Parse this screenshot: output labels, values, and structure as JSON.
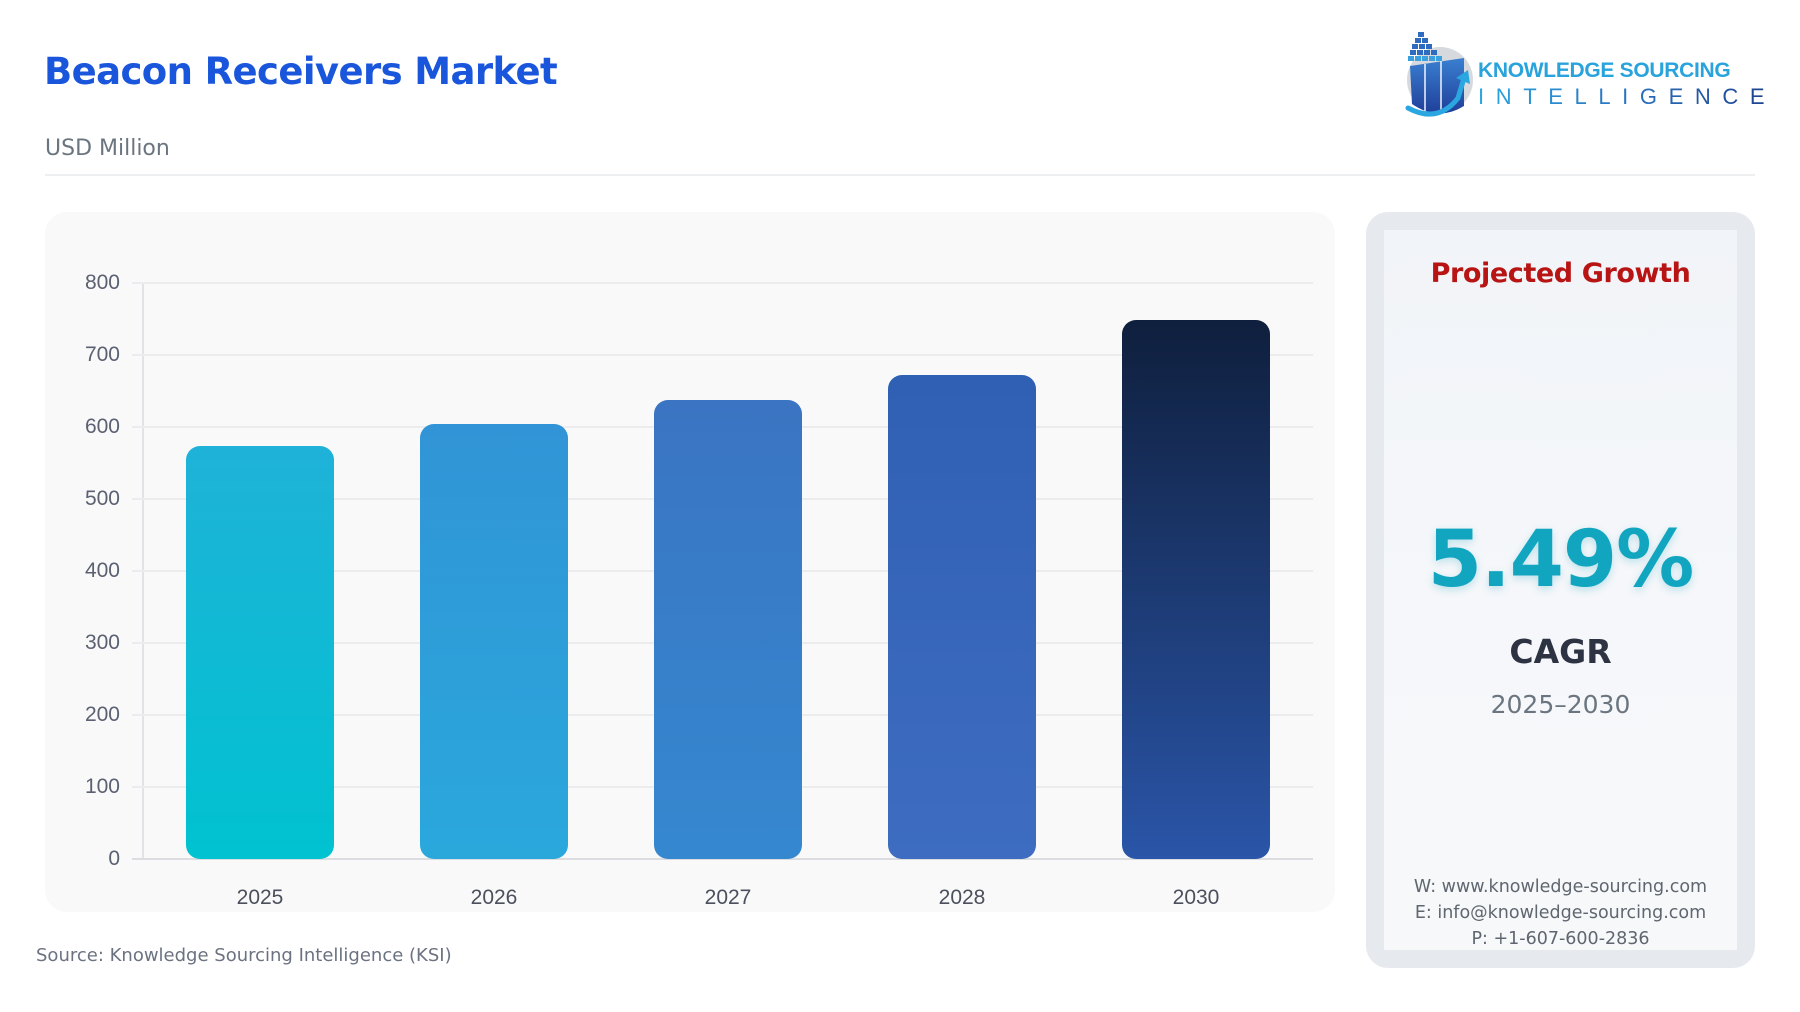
{
  "header": {
    "title": "Beacon Receivers Market",
    "subtitle": "USD Million"
  },
  "logo": {
    "line1": "KNOWLEDGE SOURCING",
    "line2": "INTELLIGENCE"
  },
  "chart_data": {
    "type": "bar",
    "title": "Beacon Receivers Market",
    "subtitle": "USD Million",
    "xlabel": "",
    "ylabel": "USD Million",
    "categories": [
      "2025",
      "2026",
      "2027",
      "2028",
      "2030"
    ],
    "values": [
      573,
      604,
      637,
      672,
      749
    ],
    "ylim": [
      0,
      800
    ],
    "yticks": [
      0,
      100,
      200,
      300,
      400,
      500,
      600,
      700,
      800
    ],
    "grid": true,
    "legend": null,
    "bar_colors": [
      [
        "#1fb2d8",
        "#00c2d0"
      ],
      [
        "#3194d6",
        "#2aa8dc"
      ],
      [
        "#3a74c2",
        "#3588d0"
      ],
      [
        "#3060b4",
        "#3d6cc0"
      ],
      [
        "#0f1f3d",
        "#2a55a8"
      ]
    ]
  },
  "source": "Source: Knowledge Sourcing Intelligence (KSI)",
  "panel": {
    "title": "Projected Growth",
    "cagr_value": "5.49%",
    "cagr_label": "CAGR",
    "period": "2025–2030",
    "website": "W: www.knowledge-sourcing.com",
    "email": "E: info@knowledge-sourcing.com",
    "phone": "P: +1-607-600-2836"
  },
  "colors": {
    "title": "#1a56db",
    "projected_growth": "#b81414",
    "cagr_value": "#12a5c0"
  }
}
